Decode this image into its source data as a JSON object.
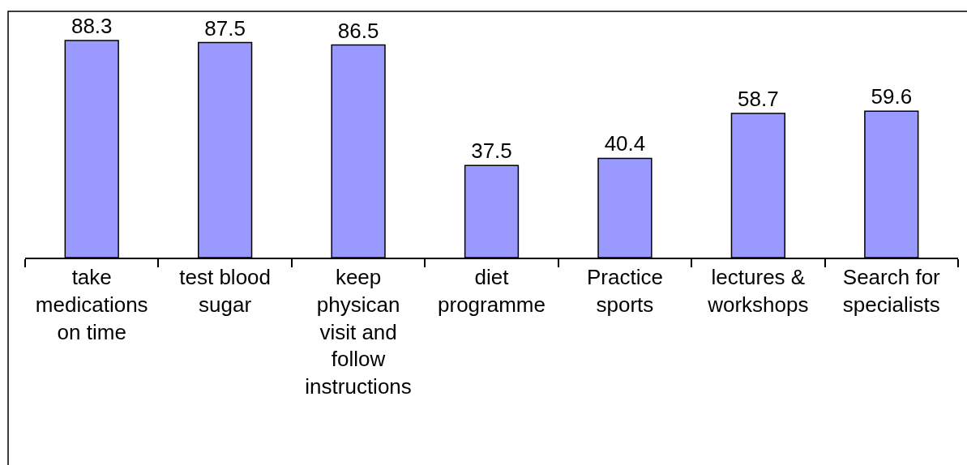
{
  "chart_data": {
    "type": "bar",
    "categories": [
      "take medications on time",
      "test blood sugar",
      "keep physican visit and follow instructions",
      "diet programme",
      "Practice sports",
      "lectures & workshops",
      "Search for specialists"
    ],
    "values": [
      88.3,
      87.5,
      86.5,
      37.5,
      40.4,
      58.7,
      59.6
    ],
    "color": "#9999ff",
    "data_labels": true,
    "tick_labels": "x"
  }
}
